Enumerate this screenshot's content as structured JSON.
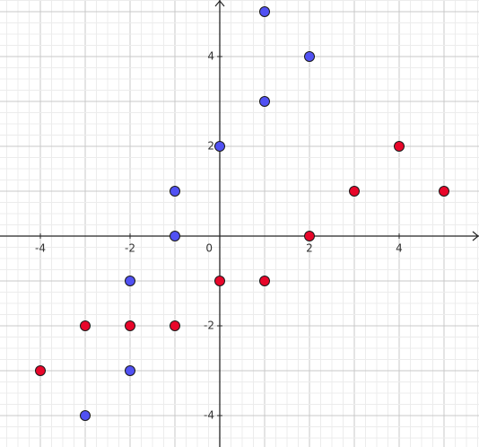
{
  "chart_data": {
    "type": "scatter",
    "xlim": [
      -4.9,
      5.78
    ],
    "ylim": [
      -4.7,
      5.26
    ],
    "xticks": [
      -4,
      -2,
      0,
      2,
      4
    ],
    "yticks": [
      -4,
      -2,
      2,
      4
    ],
    "grid": true,
    "grid_major": 1,
    "grid_minor": 0.25,
    "series": [
      {
        "color": "#5151f3",
        "x": [
          1,
          2,
          1,
          0,
          -1,
          -1,
          -2,
          -2,
          -3
        ],
        "values": [
          5,
          4,
          3,
          2,
          1,
          0,
          -1,
          -3,
          -4
        ]
      },
      {
        "color": "#e8062a",
        "x": [
          4,
          3,
          5,
          2,
          0,
          1,
          -3,
          -2,
          -1,
          -4
        ],
        "values": [
          2,
          1,
          1,
          0,
          -1,
          -1,
          -2,
          -2,
          -2,
          -3
        ]
      }
    ]
  }
}
